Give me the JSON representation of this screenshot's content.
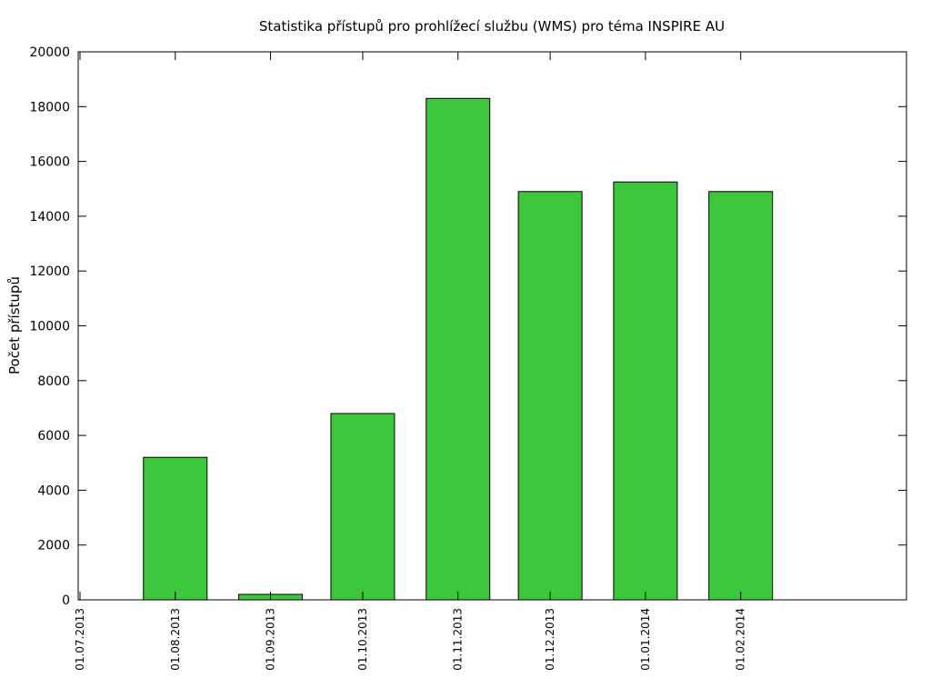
{
  "chart_data": {
    "type": "bar",
    "title": "Statistika přístupů pro prohlížecí službu (WMS) pro téma INSPIRE AU",
    "ylabel": "Počet přístupů",
    "xlabel": "",
    "ylim": [
      0,
      20000
    ],
    "yticks": [
      0,
      2000,
      4000,
      6000,
      8000,
      10000,
      12000,
      14000,
      16000,
      18000,
      20000
    ],
    "xticks": [
      "01.07.2013",
      "01.08.2013",
      "01.09.2013",
      "01.10.2013",
      "01.11.2013",
      "01.12.2013",
      "01.01.2014",
      "01.02.2014"
    ],
    "x": [
      "2013-08-01",
      "2013-09-01",
      "2013-10-01",
      "2013-11-01",
      "2013-12-01",
      "2014-01-01",
      "2014-02-01"
    ],
    "values": [
      5200,
      200,
      6800,
      18300,
      14900,
      15250,
      14900
    ],
    "bar_color": "#3cc63c",
    "grid": false,
    "legend": "none"
  }
}
